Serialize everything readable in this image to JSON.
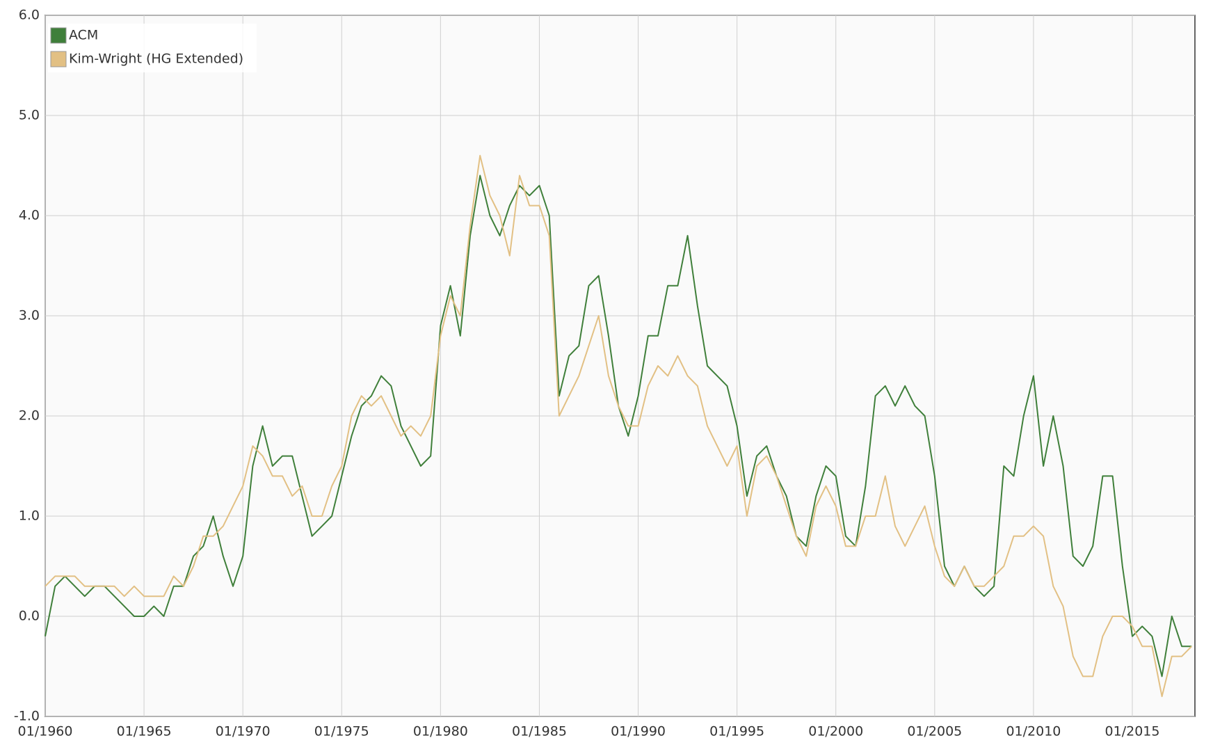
{
  "chart_data": {
    "type": "line",
    "x": [
      "01/1960",
      "07/1960",
      "01/1961",
      "07/1961",
      "01/1962",
      "07/1962",
      "01/1963",
      "07/1963",
      "01/1964",
      "07/1964",
      "01/1965",
      "07/1965",
      "01/1966",
      "07/1966",
      "01/1967",
      "07/1967",
      "01/1968",
      "07/1968",
      "01/1969",
      "07/1969",
      "01/1970",
      "07/1970",
      "01/1971",
      "07/1971",
      "01/1972",
      "07/1972",
      "01/1973",
      "07/1973",
      "01/1974",
      "07/1974",
      "01/1975",
      "07/1975",
      "01/1976",
      "07/1976",
      "01/1977",
      "07/1977",
      "01/1978",
      "07/1978",
      "01/1979",
      "07/1979",
      "01/1980",
      "07/1980",
      "01/1981",
      "07/1981",
      "01/1982",
      "07/1982",
      "01/1983",
      "07/1983",
      "01/1984",
      "07/1984",
      "01/1985",
      "07/1985",
      "01/1986",
      "07/1986",
      "01/1987",
      "07/1987",
      "01/1988",
      "07/1988",
      "01/1989",
      "07/1989",
      "01/1990",
      "07/1990",
      "01/1991",
      "07/1991",
      "01/1992",
      "07/1992",
      "01/1993",
      "07/1993",
      "01/1994",
      "07/1994",
      "01/1995",
      "07/1995",
      "01/1996",
      "07/1996",
      "01/1997",
      "07/1997",
      "01/1998",
      "07/1998",
      "01/1999",
      "07/1999",
      "01/2000",
      "07/2000",
      "01/2001",
      "07/2001",
      "01/2002",
      "07/2002",
      "01/2003",
      "07/2003",
      "01/2004",
      "07/2004",
      "01/2005",
      "07/2005",
      "01/2006",
      "07/2006",
      "01/2007",
      "07/2007",
      "01/2008",
      "07/2008",
      "01/2009",
      "07/2009",
      "01/2010",
      "07/2010",
      "01/2011",
      "07/2011",
      "01/2012",
      "07/2012",
      "01/2013",
      "07/2013",
      "01/2014",
      "07/2014",
      "01/2015",
      "07/2015",
      "01/2016",
      "07/2016",
      "01/2017",
      "07/2017",
      "01/2018"
    ],
    "series": [
      {
        "name": "ACM",
        "color": "#3f7f3a",
        "values": [
          -0.2,
          0.3,
          0.4,
          0.3,
          0.2,
          0.3,
          0.3,
          0.2,
          0.1,
          0.0,
          0.0,
          0.1,
          0.0,
          0.3,
          0.3,
          0.6,
          0.7,
          1.0,
          0.6,
          0.3,
          0.6,
          1.5,
          1.9,
          1.5,
          1.6,
          1.6,
          1.2,
          0.8,
          0.9,
          1.0,
          1.4,
          1.8,
          2.1,
          2.2,
          2.4,
          2.3,
          1.9,
          1.7,
          1.5,
          1.6,
          2.9,
          3.3,
          2.8,
          3.8,
          4.4,
          4.0,
          3.8,
          4.1,
          4.3,
          4.2,
          4.3,
          4.0,
          2.2,
          2.6,
          2.7,
          3.3,
          3.4,
          2.8,
          2.1,
          1.8,
          2.2,
          2.8,
          2.8,
          3.3,
          3.3,
          3.8,
          3.1,
          2.5,
          2.4,
          2.3,
          1.9,
          1.2,
          1.6,
          1.7,
          1.4,
          1.2,
          0.8,
          0.7,
          1.2,
          1.5,
          1.4,
          0.8,
          0.7,
          1.3,
          2.2,
          2.3,
          2.1,
          2.3,
          2.1,
          2.0,
          1.4,
          0.5,
          0.3,
          0.5,
          0.3,
          0.2,
          0.3,
          1.5,
          1.4,
          2.0,
          2.4,
          1.5,
          2.0,
          1.5,
          0.6,
          0.5,
          0.7,
          1.4,
          1.4,
          0.5,
          -0.2,
          -0.1,
          -0.2,
          -0.6,
          0.0,
          -0.3,
          -0.3
        ]
      },
      {
        "name": "Kim-Wright (HG Extended)",
        "color": "#e2c084",
        "values": [
          0.3,
          0.4,
          0.4,
          0.4,
          0.3,
          0.3,
          0.3,
          0.3,
          0.2,
          0.3,
          0.2,
          0.2,
          0.2,
          0.4,
          0.3,
          0.5,
          0.8,
          0.8,
          0.9,
          1.1,
          1.3,
          1.7,
          1.6,
          1.4,
          1.4,
          1.2,
          1.3,
          1.0,
          1.0,
          1.3,
          1.5,
          2.0,
          2.2,
          2.1,
          2.2,
          2.0,
          1.8,
          1.9,
          1.8,
          2.0,
          2.8,
          3.2,
          3.0,
          3.9,
          4.6,
          4.2,
          4.0,
          3.6,
          4.4,
          4.1,
          4.1,
          3.8,
          2.0,
          2.2,
          2.4,
          2.7,
          3.0,
          2.4,
          2.1,
          1.9,
          1.9,
          2.3,
          2.5,
          2.4,
          2.6,
          2.4,
          2.3,
          1.9,
          1.7,
          1.5,
          1.7,
          1.0,
          1.5,
          1.6,
          1.4,
          1.1,
          0.8,
          0.6,
          1.1,
          1.3,
          1.1,
          0.7,
          0.7,
          1.0,
          1.0,
          1.4,
          0.9,
          0.7,
          0.9,
          1.1,
          0.7,
          0.4,
          0.3,
          0.5,
          0.3,
          0.3,
          0.4,
          0.5,
          0.8,
          0.8,
          0.9,
          0.8,
          0.3,
          0.1,
          -0.4,
          -0.6,
          -0.6,
          -0.2,
          0.0,
          0.0,
          -0.1,
          -0.3,
          -0.3,
          -0.8,
          -0.4,
          -0.4,
          -0.3
        ]
      }
    ],
    "xlim": [
      "01/1960",
      "03/2018"
    ],
    "xticks": [
      "01/1960",
      "01/1965",
      "01/1970",
      "01/1975",
      "01/1980",
      "01/1985",
      "01/1990",
      "01/1995",
      "01/2000",
      "01/2005",
      "01/2010",
      "01/2015"
    ],
    "ylim": [
      -1,
      6
    ],
    "yticks": [
      {
        "value": -1,
        "label": "-1.0"
      },
      {
        "value": 0,
        "label": "0.0"
      },
      {
        "value": 1,
        "label": "1.0"
      },
      {
        "value": 2,
        "label": "2.0"
      },
      {
        "value": 3,
        "label": "3.0"
      },
      {
        "value": 4,
        "label": "4.0"
      },
      {
        "value": 5,
        "label": "5.0"
      },
      {
        "value": 6,
        "label": "6.0"
      }
    ],
    "grid": true,
    "legend": "top-left"
  }
}
